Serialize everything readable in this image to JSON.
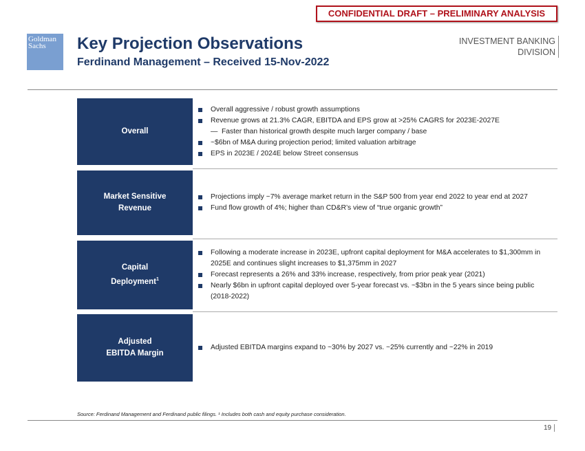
{
  "confidential": "CONFIDENTIAL DRAFT – PRELIMINARY ANALYSIS",
  "logo": "Goldman Sachs",
  "title": "Key Projection Observations",
  "subtitle": "Ferdinand Management – Received 15-Nov-2022",
  "division": {
    "line1": "INVESTMENT BANKING",
    "line2": "DIVISION"
  },
  "rows": [
    {
      "label": "Overall",
      "items": [
        {
          "type": "bullet",
          "text": "Overall aggressive / robust growth assumptions"
        },
        {
          "type": "bullet",
          "text": "Revenue grows at 21.3% CAGR, EBITDA and EPS grow at >25% CAGRS for 2023E-2027E"
        },
        {
          "type": "dash",
          "text": "Faster than historical growth despite much larger company / base"
        },
        {
          "type": "bullet",
          "text": "~$6bn of M&A during projection period; limited valuation arbitrage"
        },
        {
          "type": "bullet",
          "text": "EPS in 2023E / 2024E below Street consensus"
        }
      ]
    },
    {
      "label": "Market Sensitive Revenue",
      "items": [
        {
          "type": "bullet",
          "text": "Projections imply ~7% average market return in the S&P 500 from year end 2022 to year end at 2027"
        },
        {
          "type": "bullet",
          "text": "Fund flow growth of 4%; higher than CD&R’s view of “true organic growth”"
        }
      ]
    },
    {
      "label": "Capital Deployment",
      "label_sup": "1",
      "items": [
        {
          "type": "bullet",
          "text": "Following a moderate increase in 2023E, upfront capital deployment for M&A accelerates to $1,300mm in 2025E and continues slight increases to $1,375mm in 2027"
        },
        {
          "type": "bullet",
          "text": "Forecast represents a 26% and 33% increase, respectively, from prior peak year (2021)"
        },
        {
          "type": "bullet",
          "text": "Nearly $6bn in upfront capital deployed over 5-year forecast vs. ~$3bn in the 5 years since being public (2018-2022)"
        }
      ]
    },
    {
      "label": "Adjusted EBITDA Margin",
      "items": [
        {
          "type": "bullet",
          "text": "Adjusted EBITDA margins expand to ~30% by 2027 vs. ~25% currently and ~22% in 2019"
        }
      ]
    }
  ],
  "source": "Source: Ferdinand Management and Ferdinand public filings. ¹ Includes both cash and equity purchase consideration.",
  "page_number": "19"
}
